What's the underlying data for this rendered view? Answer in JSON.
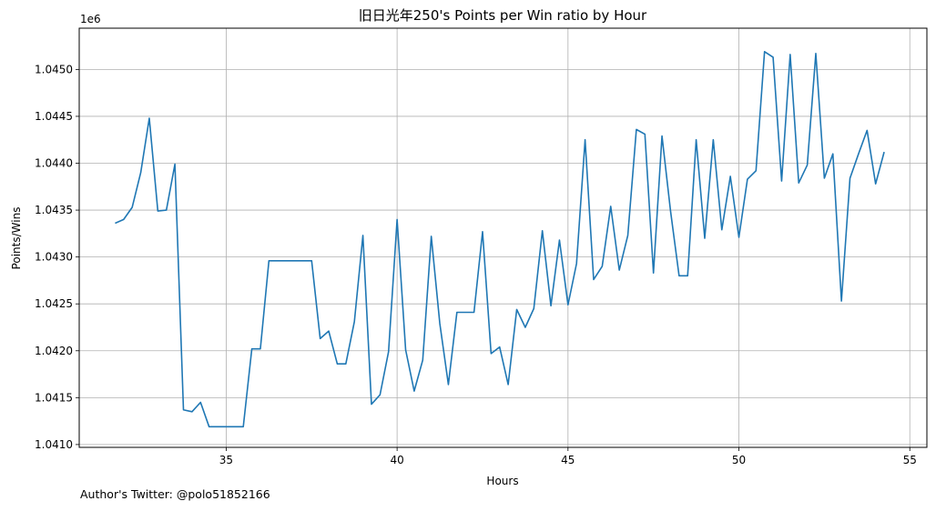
{
  "chart_data": {
    "type": "line",
    "title": "旧日光年250's Points per Win ratio by Hour",
    "xlabel": "Hours",
    "ylabel": "Points/Wins",
    "y_offset_label": "1e6",
    "y_scale": 1000000,
    "xlim": [
      30.7,
      55.5
    ],
    "ylim": [
      1.04097,
      1.04544
    ],
    "x_ticks": [
      35,
      40,
      45,
      50,
      55
    ],
    "y_ticks": [
      1.041,
      1.0415,
      1.042,
      1.0425,
      1.043,
      1.0435,
      1.044,
      1.0445,
      1.045
    ],
    "grid": true,
    "series": [
      {
        "name": "Points/Wins",
        "color": "#1f77b4",
        "x": [
          31.75,
          32.0,
          32.25,
          32.5,
          32.75,
          33.0,
          33.25,
          33.5,
          33.75,
          34.0,
          34.25,
          34.5,
          34.75,
          35.0,
          35.25,
          35.5,
          35.75,
          36.0,
          36.25,
          36.5,
          36.75,
          37.0,
          37.25,
          37.5,
          37.75,
          38.0,
          38.25,
          38.5,
          38.75,
          39.0,
          39.25,
          39.5,
          39.75,
          40.0,
          40.25,
          40.5,
          40.75,
          41.0,
          41.25,
          41.5,
          41.75,
          42.0,
          42.25,
          42.5,
          42.75,
          43.0,
          43.25,
          43.5,
          43.75,
          44.0,
          44.25,
          44.5,
          44.75,
          45.0,
          45.25,
          45.5,
          45.75,
          46.0,
          46.25,
          46.5,
          46.75,
          47.0,
          47.25,
          47.5,
          47.75,
          48.0,
          48.25,
          48.5,
          48.75,
          49.0,
          49.25,
          49.5,
          49.75,
          50.0,
          50.25,
          50.5,
          50.75,
          51.0,
          51.25,
          51.5,
          51.75,
          52.0,
          52.25,
          52.5,
          52.75,
          53.0,
          53.25,
          53.5,
          53.75,
          54.0,
          54.25
        ],
        "y": [
          1.04336,
          1.0434,
          1.04353,
          1.0439,
          1.04448,
          1.04349,
          1.0435,
          1.04399,
          1.04137,
          1.04135,
          1.04145,
          1.04119,
          1.04119,
          1.04119,
          1.04119,
          1.04119,
          1.04202,
          1.04202,
          1.04296,
          1.04296,
          1.04296,
          1.04296,
          1.04296,
          1.04296,
          1.04213,
          1.04221,
          1.04186,
          1.04186,
          1.04231,
          1.04323,
          1.04143,
          1.04153,
          1.04199,
          1.0434,
          1.04201,
          1.04157,
          1.0419,
          1.04322,
          1.04229,
          1.04164,
          1.04241,
          1.04241,
          1.04241,
          1.04327,
          1.04197,
          1.04204,
          1.04164,
          1.04244,
          1.04225,
          1.04245,
          1.04328,
          1.04248,
          1.04318,
          1.04249,
          1.04293,
          1.04425,
          1.04276,
          1.0429,
          1.04354,
          1.04286,
          1.04323,
          1.04436,
          1.04431,
          1.04283,
          1.04429,
          1.04349,
          1.0428,
          1.0428,
          1.04425,
          1.0432,
          1.04425,
          1.04329,
          1.04386,
          1.04321,
          1.04383,
          1.04392,
          1.04519,
          1.04513,
          1.04381,
          1.04516,
          1.04379,
          1.04398,
          1.04517,
          1.04384,
          1.0441,
          1.04253,
          1.04384,
          1.0441,
          1.04435,
          1.04378,
          1.04412
        ]
      }
    ]
  },
  "footnote": "Author's Twitter: @polo51852166"
}
